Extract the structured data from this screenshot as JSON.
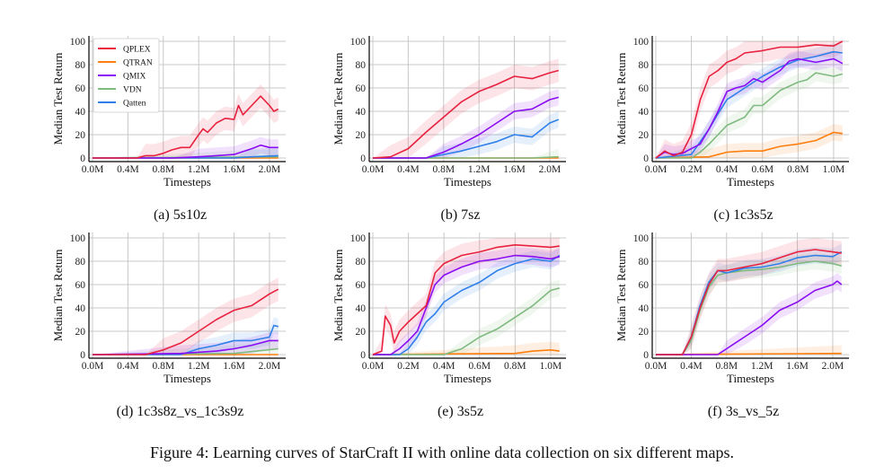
{
  "figure_caption": "Figure 4: Learning curves of StarCraft II with online data collection on six different maps.",
  "colors": {
    "QPLEX": "#e8213f",
    "QTRAN": "#ff7f0e",
    "QMIX": "#8a0cf2",
    "VDN": "#7fba7f",
    "Qatten": "#2f80ea"
  },
  "chart_data": [
    {
      "type": "line",
      "caption": "(a) 5s10z",
      "xlabel": "Timesteps",
      "ylabel": "Median Test Return",
      "xlim": [
        0,
        2.1
      ],
      "ylim": [
        0,
        100
      ],
      "xticks": [
        0,
        0.4,
        0.8,
        1.2,
        1.6,
        2.0
      ],
      "xtick_labels": [
        "0.0M",
        "0.4M",
        "0.8M",
        "1.2M",
        "1.6M",
        "2.0M"
      ],
      "yticks": [
        0,
        20,
        40,
        60,
        80,
        100
      ],
      "yticks_labels": [
        "0",
        "20",
        "40",
        "60",
        "80",
        "100"
      ],
      "grid": true,
      "legend": "top-left",
      "legend_entries": [
        "QPLEX",
        "QTRAN",
        "QMIX",
        "VDN",
        "Qatten"
      ],
      "series": [
        {
          "name": "QPLEX",
          "x": [
            0,
            0.5,
            0.6,
            0.7,
            0.8,
            0.9,
            1.0,
            1.1,
            1.2,
            1.25,
            1.3,
            1.4,
            1.5,
            1.6,
            1.65,
            1.7,
            1.8,
            1.9,
            2.0,
            2.05,
            2.1
          ],
          "y": [
            0,
            0,
            2,
            2,
            4,
            7,
            9,
            9,
            20,
            25,
            22,
            30,
            34,
            33,
            45,
            37,
            45,
            53,
            45,
            40,
            42
          ]
        },
        {
          "name": "QTRAN",
          "x": [
            0,
            2.1
          ],
          "y": [
            0,
            0
          ]
        },
        {
          "name": "QMIX",
          "x": [
            0,
            0.9,
            1.2,
            1.4,
            1.6,
            1.8,
            1.9,
            2.0,
            2.1
          ],
          "y": [
            0,
            0,
            1,
            2,
            3,
            8,
            11,
            9,
            9
          ]
        },
        {
          "name": "VDN",
          "x": [
            0,
            2.1
          ],
          "y": [
            0,
            1
          ]
        },
        {
          "name": "Qatten",
          "x": [
            0,
            1.6,
            1.8,
            2.1
          ],
          "y": [
            0,
            0,
            1,
            2
          ]
        }
      ]
    },
    {
      "type": "line",
      "caption": "(b) 7sz",
      "xlabel": "Timesteps",
      "ylabel": "Median Test Return",
      "xlim": [
        0,
        2.1
      ],
      "ylim": [
        0,
        100
      ],
      "xticks": [
        0,
        0.4,
        0.8,
        1.2,
        1.6,
        2.0
      ],
      "xtick_labels": [
        "0.0M",
        "0.4M",
        "0.8M",
        "1.2M",
        "1.6M",
        "2.0M"
      ],
      "yticks": [
        0,
        20,
        40,
        60,
        80,
        100
      ],
      "yticks_labels": [
        "0",
        "20",
        "40",
        "60",
        "80",
        "100"
      ],
      "grid": true,
      "series": [
        {
          "name": "QPLEX",
          "x": [
            0,
            0.2,
            0.4,
            0.6,
            0.8,
            1.0,
            1.2,
            1.4,
            1.6,
            1.8,
            2.0,
            2.1
          ],
          "y": [
            0,
            1,
            8,
            22,
            35,
            48,
            57,
            63,
            70,
            68,
            73,
            75
          ]
        },
        {
          "name": "QTRAN",
          "x": [
            0,
            2.1
          ],
          "y": [
            0,
            0
          ]
        },
        {
          "name": "QMIX",
          "x": [
            0,
            0.6,
            0.8,
            1.0,
            1.2,
            1.4,
            1.6,
            1.8,
            2.0,
            2.1
          ],
          "y": [
            0,
            0,
            5,
            12,
            20,
            30,
            40,
            42,
            50,
            52
          ]
        },
        {
          "name": "VDN",
          "x": [
            0,
            1.8,
            2.1
          ],
          "y": [
            0,
            0,
            1
          ]
        },
        {
          "name": "Qatten",
          "x": [
            0,
            0.6,
            0.8,
            1.0,
            1.2,
            1.4,
            1.6,
            1.8,
            2.0,
            2.1
          ],
          "y": [
            0,
            0,
            3,
            6,
            10,
            14,
            20,
            18,
            30,
            33
          ]
        }
      ]
    },
    {
      "type": "line",
      "caption": "(c) 1c3s5z",
      "xlabel": "Timesteps",
      "ylabel": "Median Test Return",
      "xlim": [
        0,
        1.05
      ],
      "ylim": [
        0,
        100
      ],
      "xticks": [
        0,
        0.2,
        0.4,
        0.6,
        0.8,
        1.0
      ],
      "xtick_labels": [
        "0.0M",
        "0.2M",
        "0.4M",
        "0.6M",
        "0.8M",
        "1.0M"
      ],
      "yticks": [
        0,
        20,
        40,
        60,
        80,
        100
      ],
      "yticks_labels": [
        "0",
        "20",
        "40",
        "60",
        "80",
        "100"
      ],
      "grid": true,
      "series": [
        {
          "name": "QPLEX",
          "x": [
            0,
            0.05,
            0.1,
            0.15,
            0.2,
            0.25,
            0.3,
            0.35,
            0.4,
            0.45,
            0.5,
            0.6,
            0.7,
            0.8,
            0.9,
            1.0,
            1.05
          ],
          "y": [
            0,
            6,
            2,
            5,
            20,
            50,
            70,
            75,
            82,
            85,
            90,
            92,
            95,
            95,
            97,
            96,
            100
          ]
        },
        {
          "name": "QTRAN",
          "x": [
            0,
            0.3,
            0.4,
            0.5,
            0.6,
            0.7,
            0.8,
            0.9,
            1.0,
            1.05
          ],
          "y": [
            0,
            1,
            5,
            6,
            6,
            10,
            12,
            15,
            22,
            21
          ]
        },
        {
          "name": "QMIX",
          "x": [
            0,
            0.05,
            0.1,
            0.15,
            0.2,
            0.25,
            0.3,
            0.35,
            0.4,
            0.45,
            0.5,
            0.55,
            0.6,
            0.7,
            0.75,
            0.8,
            0.9,
            1.0,
            1.05
          ],
          "y": [
            0,
            5,
            3,
            4,
            8,
            12,
            25,
            40,
            57,
            60,
            62,
            68,
            65,
            75,
            83,
            85,
            82,
            85,
            81
          ]
        },
        {
          "name": "VDN",
          "x": [
            0,
            0.2,
            0.25,
            0.3,
            0.35,
            0.4,
            0.5,
            0.55,
            0.6,
            0.7,
            0.8,
            0.85,
            0.9,
            1.0,
            1.05
          ],
          "y": [
            0,
            0,
            5,
            12,
            20,
            28,
            35,
            45,
            45,
            58,
            65,
            67,
            73,
            70,
            72
          ]
        },
        {
          "name": "Qatten",
          "x": [
            0,
            0.2,
            0.3,
            0.35,
            0.4,
            0.5,
            0.6,
            0.7,
            0.8,
            0.9,
            1.0,
            1.05
          ],
          "y": [
            0,
            3,
            25,
            38,
            50,
            60,
            70,
            78,
            84,
            87,
            91,
            90
          ]
        }
      ]
    },
    {
      "type": "line",
      "caption": "(d) 1c3s8z_vs_1c3s9z",
      "xlabel": "Timesteps",
      "ylabel": "Median Test Return",
      "xlim": [
        0,
        2.1
      ],
      "ylim": [
        0,
        100
      ],
      "xticks": [
        0,
        0.4,
        0.8,
        1.2,
        1.6,
        2.0
      ],
      "xtick_labels": [
        "0.0M",
        "0.4M",
        "0.8M",
        "1.2M",
        "1.6M",
        "2.0M"
      ],
      "yticks": [
        0,
        20,
        40,
        60,
        80,
        100
      ],
      "yticks_labels": [
        "0",
        "20",
        "40",
        "60",
        "80",
        "100"
      ],
      "grid": true,
      "series": [
        {
          "name": "QPLEX",
          "x": [
            0,
            0.6,
            0.8,
            1.0,
            1.2,
            1.4,
            1.6,
            1.8,
            2.0,
            2.1
          ],
          "y": [
            0,
            0,
            4,
            10,
            20,
            30,
            38,
            42,
            52,
            56
          ]
        },
        {
          "name": "QTRAN",
          "x": [
            0,
            2.1
          ],
          "y": [
            0,
            0
          ]
        },
        {
          "name": "QMIX",
          "x": [
            0,
            1.0,
            1.4,
            1.6,
            1.8,
            2.0,
            2.1
          ],
          "y": [
            0,
            1,
            3,
            5,
            8,
            12,
            12
          ]
        },
        {
          "name": "VDN",
          "x": [
            0,
            1.6,
            2.1
          ],
          "y": [
            0,
            1,
            5
          ]
        },
        {
          "name": "Qatten",
          "x": [
            0,
            1.0,
            1.2,
            1.4,
            1.6,
            1.8,
            2.0,
            2.05,
            2.1
          ],
          "y": [
            0,
            0,
            5,
            8,
            12,
            12,
            15,
            25,
            24
          ]
        }
      ]
    },
    {
      "type": "line",
      "caption": "(e) 3s5z",
      "xlabel": "Timesteps",
      "ylabel": "Median Test Return",
      "xlim": [
        0,
        1.05
      ],
      "ylim": [
        0,
        100
      ],
      "xticks": [
        0,
        0.2,
        0.4,
        0.6,
        0.8,
        1.0
      ],
      "xtick_labels": [
        "0.0M",
        "0.2M",
        "0.4M",
        "0.6M",
        "0.8M",
        "1.0M"
      ],
      "yticks": [
        0,
        20,
        40,
        60,
        80,
        100
      ],
      "yticks_labels": [
        "0",
        "20",
        "40",
        "60",
        "80",
        "100"
      ],
      "grid": true,
      "series": [
        {
          "name": "QPLEX",
          "x": [
            0,
            0.05,
            0.07,
            0.1,
            0.12,
            0.15,
            0.2,
            0.3,
            0.35,
            0.4,
            0.5,
            0.6,
            0.7,
            0.8,
            0.9,
            1.0,
            1.05
          ],
          "y": [
            0,
            3,
            33,
            25,
            10,
            20,
            28,
            42,
            70,
            78,
            85,
            88,
            92,
            94,
            93,
            92,
            93
          ]
        },
        {
          "name": "QTRAN",
          "x": [
            0,
            0.8,
            0.9,
            1.0,
            1.05
          ],
          "y": [
            0,
            1,
            3,
            4,
            3
          ]
        },
        {
          "name": "QMIX",
          "x": [
            0,
            0.1,
            0.15,
            0.2,
            0.25,
            0.3,
            0.35,
            0.4,
            0.5,
            0.6,
            0.7,
            0.8,
            0.9,
            1.0,
            1.05
          ],
          "y": [
            0,
            0,
            5,
            12,
            20,
            40,
            60,
            68,
            75,
            80,
            82,
            85,
            84,
            82,
            84
          ]
        },
        {
          "name": "VDN",
          "x": [
            0,
            0.4,
            0.5,
            0.6,
            0.7,
            0.8,
            0.9,
            1.0,
            1.05
          ],
          "y": [
            0,
            0,
            5,
            15,
            22,
            32,
            42,
            55,
            57
          ]
        },
        {
          "name": "Qatten",
          "x": [
            0,
            0.15,
            0.2,
            0.25,
            0.3,
            0.35,
            0.4,
            0.5,
            0.6,
            0.7,
            0.8,
            0.9,
            1.0,
            1.05
          ],
          "y": [
            0,
            0,
            5,
            15,
            28,
            35,
            45,
            55,
            62,
            72,
            78,
            82,
            80,
            85
          ]
        }
      ]
    },
    {
      "type": "line",
      "caption": "(f) 3s_vs_5z",
      "xlabel": "Timesteps",
      "ylabel": "Median Test Return",
      "xlim": [
        0,
        2.1
      ],
      "ylim": [
        0,
        100
      ],
      "xticks": [
        0,
        0.4,
        0.8,
        1.2,
        1.6,
        2.0
      ],
      "xtick_labels": [
        "0.0M",
        "0.4M",
        "0.8M",
        "1.2M",
        "1.6M",
        "2.0M"
      ],
      "yticks": [
        0,
        20,
        40,
        60,
        80,
        100
      ],
      "yticks_labels": [
        "0",
        "20",
        "40",
        "60",
        "80",
        "100"
      ],
      "grid": true,
      "series": [
        {
          "name": "QPLEX",
          "x": [
            0,
            0.3,
            0.4,
            0.5,
            0.6,
            0.7,
            0.8,
            1.0,
            1.2,
            1.4,
            1.6,
            1.8,
            2.0,
            2.1
          ],
          "y": [
            0,
            0,
            15,
            40,
            60,
            72,
            72,
            75,
            78,
            83,
            88,
            90,
            88,
            87
          ]
        },
        {
          "name": "QTRAN",
          "x": [
            0,
            2.1
          ],
          "y": [
            0,
            1
          ]
        },
        {
          "name": "QMIX",
          "x": [
            0,
            0.7,
            0.8,
            1.0,
            1.2,
            1.4,
            1.6,
            1.8,
            2.0,
            2.05,
            2.1
          ],
          "y": [
            0,
            0,
            5,
            15,
            25,
            38,
            45,
            55,
            60,
            63,
            60
          ]
        },
        {
          "name": "VDN",
          "x": [
            0,
            0.3,
            0.4,
            0.5,
            0.6,
            0.7,
            0.8,
            1.0,
            1.2,
            1.4,
            1.6,
            1.8,
            2.0,
            2.1
          ],
          "y": [
            0,
            0,
            12,
            38,
            58,
            68,
            70,
            72,
            73,
            75,
            78,
            80,
            78,
            76
          ]
        },
        {
          "name": "Qatten",
          "x": [
            0,
            0.3,
            0.4,
            0.5,
            0.6,
            0.7,
            0.8,
            1.0,
            1.2,
            1.4,
            1.6,
            1.8,
            2.0,
            2.1
          ],
          "y": [
            0,
            0,
            15,
            42,
            62,
            72,
            70,
            74,
            75,
            78,
            83,
            85,
            84,
            88
          ]
        }
      ]
    }
  ]
}
